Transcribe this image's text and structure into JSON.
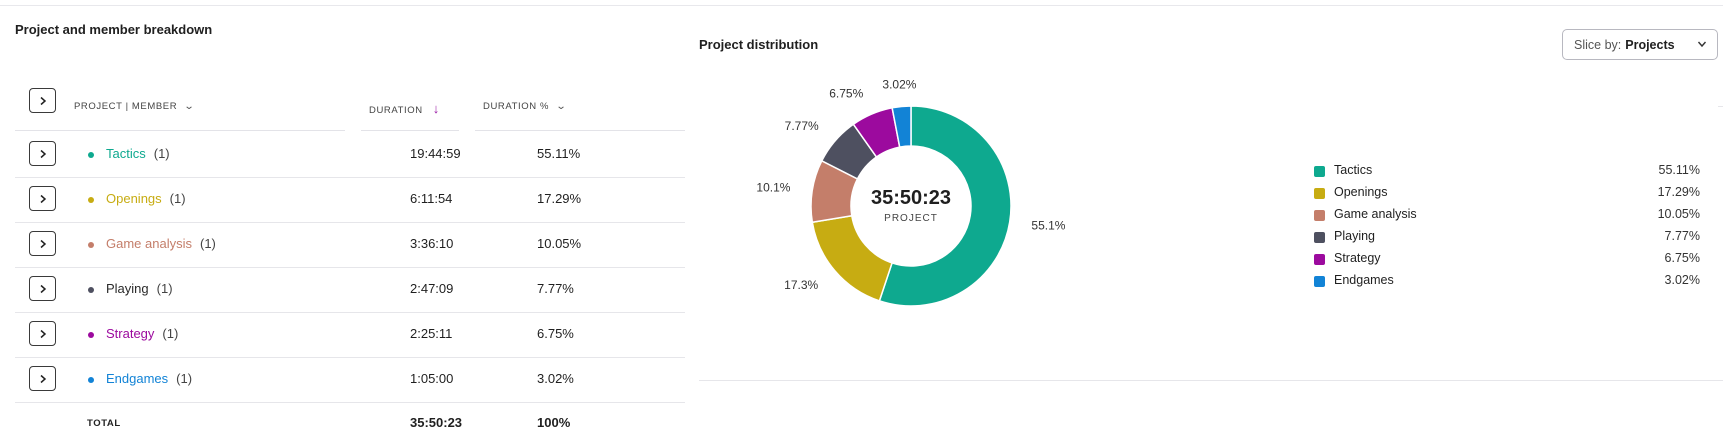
{
  "left": {
    "title": "Project and member breakdown",
    "columns": {
      "project": "PROJECT | MEMBER",
      "duration": "DURATION",
      "duration_pct": "DURATION %"
    },
    "rows": [
      {
        "name": "Tactics",
        "count": "(1)",
        "duration": "19:44:59",
        "pct": "55.11%",
        "color": "#0ea98f"
      },
      {
        "name": "Openings",
        "count": "(1)",
        "duration": "6:11:54",
        "pct": "17.29%",
        "color": "#c7ac12"
      },
      {
        "name": "Game analysis",
        "count": "(1)",
        "duration": "3:36:10",
        "pct": "10.05%",
        "color": "#c47e6a"
      },
      {
        "name": "Playing",
        "count": "(1)",
        "duration": "2:47:09",
        "pct": "7.77%",
        "color": "#4e5060"
      },
      {
        "name": "Strategy",
        "count": "(1)",
        "duration": "2:25:11",
        "pct": "6.75%",
        "color": "#9c0a9e"
      },
      {
        "name": "Endgames",
        "count": "(1)",
        "duration": "1:05:00",
        "pct": "3.02%",
        "color": "#1283d6"
      }
    ],
    "total": {
      "label": "TOTAL",
      "duration": "35:50:23",
      "pct": "100%"
    }
  },
  "right": {
    "title": "Project distribution",
    "slice_by": {
      "label": "Slice by:",
      "value": "Projects"
    },
    "center": {
      "time": "35:50:23",
      "label": "PROJECT"
    }
  },
  "chart_data": {
    "type": "pie",
    "title": "Project distribution",
    "categories": [
      "Tactics",
      "Openings",
      "Game analysis",
      "Playing",
      "Strategy",
      "Endgames"
    ],
    "values": [
      55.11,
      17.29,
      10.05,
      7.77,
      6.75,
      3.02
    ],
    "slice_labels": [
      "55.1%",
      "17.3%",
      "10.1%",
      "7.77%",
      "6.75%",
      "3.02%"
    ],
    "legend_values": [
      "55.11%",
      "17.29%",
      "10.05%",
      "7.77%",
      "6.75%",
      "3.02%"
    ],
    "colors": [
      "#0ea98f",
      "#c7ac12",
      "#c47e6a",
      "#4e5060",
      "#9c0a9e",
      "#1283d6"
    ],
    "legend_position": "right"
  }
}
